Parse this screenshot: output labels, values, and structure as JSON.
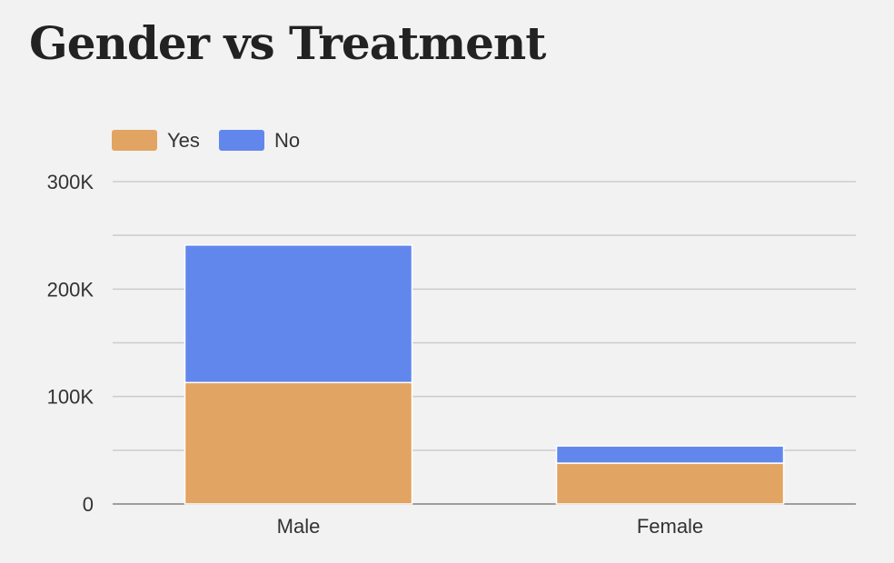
{
  "chart_data": {
    "type": "bar",
    "stacked": true,
    "title": "Gender vs Treatment",
    "categories": [
      "Male",
      "Female"
    ],
    "series": [
      {
        "name": "Yes",
        "values": [
          113000,
          38000
        ],
        "color": "#e2a462"
      },
      {
        "name": "No",
        "values": [
          128000,
          16000
        ],
        "color": "#6287ec"
      }
    ],
    "ylim": [
      0,
      300000
    ],
    "yticks": [
      0,
      100000,
      200000,
      300000
    ],
    "ytick_labels": [
      "0",
      "100K",
      "200K",
      "300K"
    ],
    "grid": true,
    "legend_position": "top-left"
  }
}
